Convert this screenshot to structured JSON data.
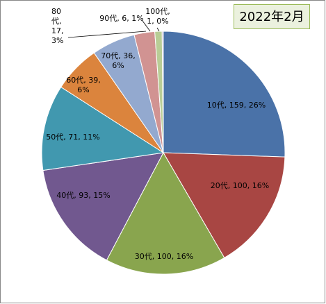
{
  "chart_data": {
    "type": "pie",
    "title": "2022年2月",
    "categories": [
      "10代",
      "20代",
      "30代",
      "40代",
      "50代",
      "60代",
      "70代",
      "80代",
      "90代",
      "100代"
    ],
    "values": [
      159,
      100,
      100,
      93,
      71,
      39,
      36,
      17,
      6,
      1
    ],
    "value_labels": [
      "10代, 159, 26%",
      "20代, 100, 16%",
      "30代, 100, 16%",
      "40代, 93, 15%",
      "50代, 71, 11%",
      "60代, 39, 6%",
      "70代, 36, 6%",
      "80代, 17, 3%",
      "90代, 6, 1%",
      "100代, 1, 0%"
    ],
    "colors": [
      "#4a72a8",
      "#a84643",
      "#89a54e",
      "#71588f",
      "#4198af",
      "#db843d",
      "#93a9cf",
      "#d19392",
      "#b9cd96",
      "#a99bbd"
    ]
  }
}
